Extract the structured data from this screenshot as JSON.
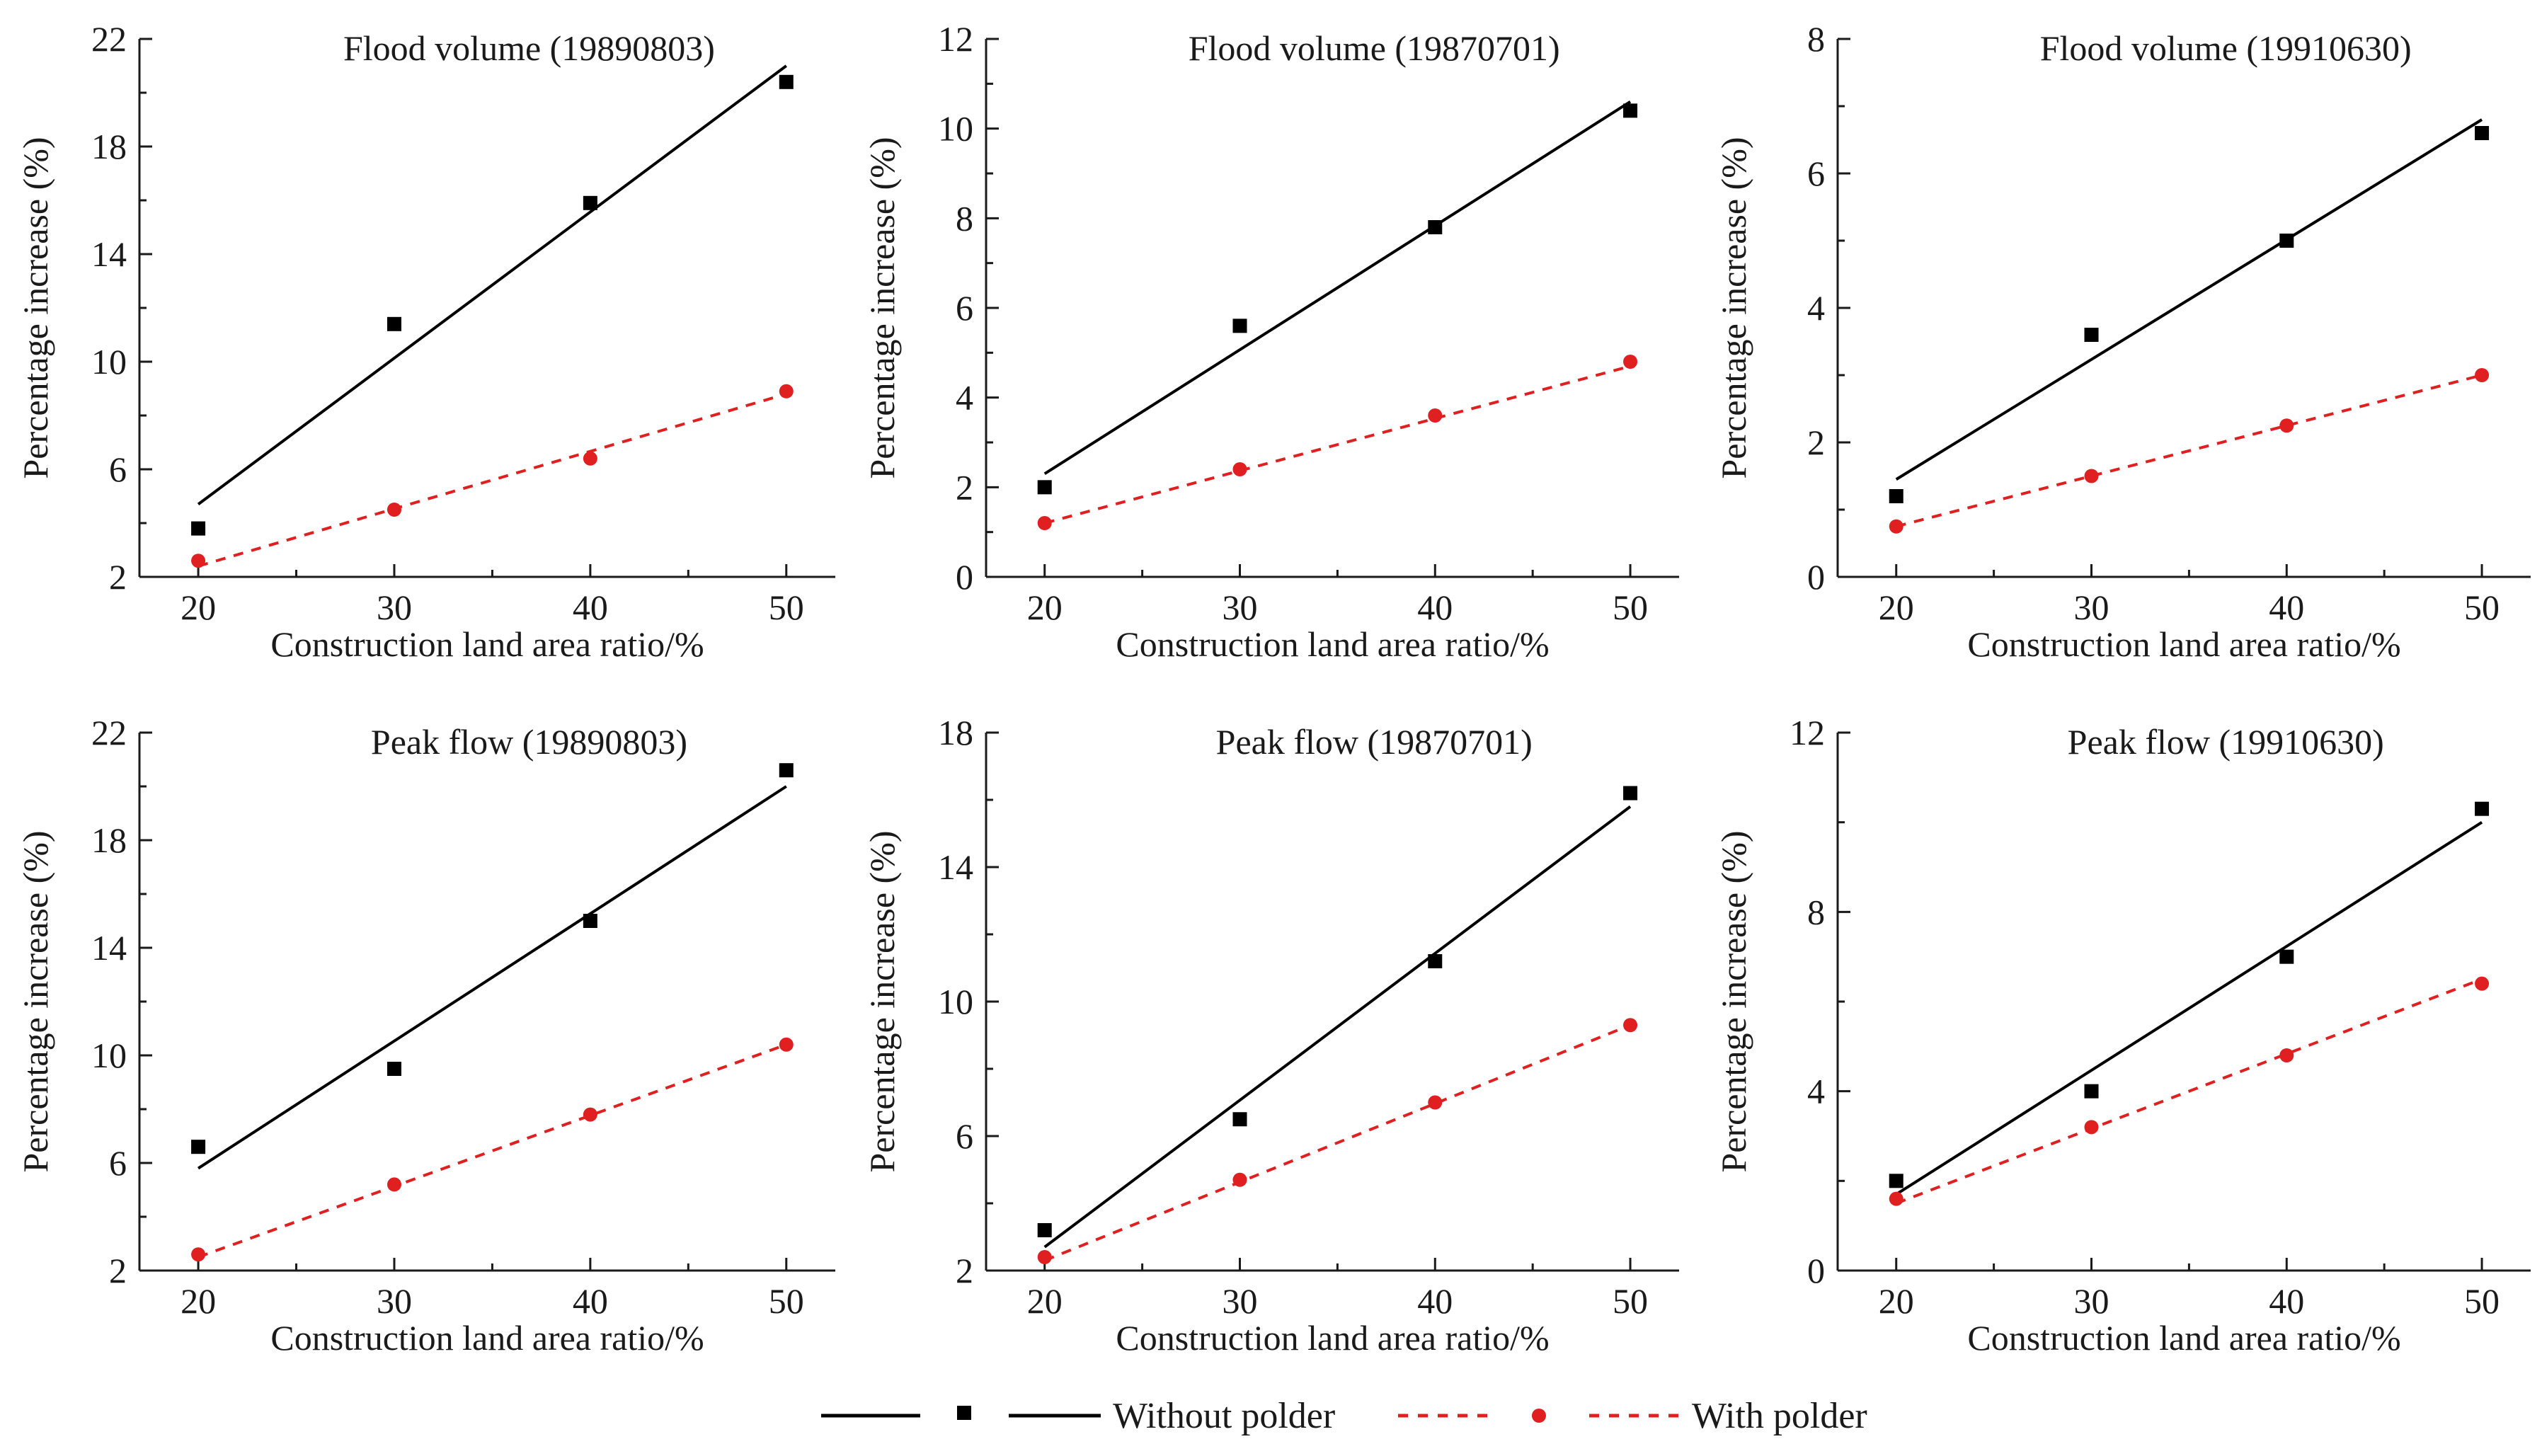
{
  "chart_data": [
    {
      "type": "scatter",
      "title": "Flood volume (19890803)",
      "xlabel": "Construction land area ratio/%",
      "ylabel": "Percentage increase (%)",
      "xticks": [
        20,
        30,
        40,
        50
      ],
      "yticks": [
        2,
        6,
        10,
        14,
        18,
        22
      ],
      "xlim": [
        17,
        52.5
      ],
      "ylim": [
        2,
        22
      ],
      "series": [
        {
          "name": "Without polder",
          "x": [
            20,
            30,
            40,
            50
          ],
          "y": [
            3.8,
            11.4,
            15.9,
            20.4
          ],
          "fit": [
            [
              20,
              4.7
            ],
            [
              50,
              21.0
            ]
          ]
        },
        {
          "name": "With polder",
          "x": [
            20,
            30,
            40,
            50
          ],
          "y": [
            2.6,
            4.5,
            6.4,
            8.9
          ],
          "fit": [
            [
              20,
              2.4
            ],
            [
              50,
              8.8
            ]
          ]
        }
      ]
    },
    {
      "type": "scatter",
      "title": "Flood volume (19870701)",
      "xlabel": "Construction land area ratio/%",
      "ylabel": "Percentage increase (%)",
      "xticks": [
        20,
        30,
        40,
        50
      ],
      "yticks": [
        0,
        2,
        4,
        6,
        8,
        10,
        12
      ],
      "xlim": [
        17,
        52.5
      ],
      "ylim": [
        0,
        12
      ],
      "series": [
        {
          "name": "Without polder",
          "x": [
            20,
            30,
            40,
            50
          ],
          "y": [
            2.0,
            5.6,
            7.8,
            10.4
          ],
          "fit": [
            [
              20,
              2.3
            ],
            [
              50,
              10.6
            ]
          ]
        },
        {
          "name": "With polder",
          "x": [
            20,
            30,
            40,
            50
          ],
          "y": [
            1.2,
            2.4,
            3.6,
            4.8
          ],
          "fit": [
            [
              20,
              1.2
            ],
            [
              50,
              4.7
            ]
          ]
        }
      ]
    },
    {
      "type": "scatter",
      "title": "Flood volume (19910630)",
      "xlabel": "Construction land area ratio/%",
      "ylabel": "Percentage increase (%)",
      "xticks": [
        20,
        30,
        40,
        50
      ],
      "yticks": [
        0,
        2,
        4,
        6,
        8
      ],
      "xlim": [
        17,
        52.5
      ],
      "ylim": [
        0,
        8
      ],
      "series": [
        {
          "name": "Without polder",
          "x": [
            20,
            30,
            40,
            50
          ],
          "y": [
            1.2,
            3.6,
            5.0,
            6.6
          ],
          "fit": [
            [
              20,
              1.45
            ],
            [
              50,
              6.8
            ]
          ]
        },
        {
          "name": "With polder",
          "x": [
            20,
            30,
            40,
            50
          ],
          "y": [
            0.75,
            1.5,
            2.25,
            3.0
          ],
          "fit": [
            [
              20,
              0.75
            ],
            [
              50,
              3.0
            ]
          ]
        }
      ]
    },
    {
      "type": "scatter",
      "title": "Peak flow (19890803)",
      "xlabel": "Construction land area ratio/%",
      "ylabel": "Percentage increase (%)",
      "xticks": [
        20,
        30,
        40,
        50
      ],
      "yticks": [
        2,
        6,
        10,
        14,
        18,
        22
      ],
      "xlim": [
        17,
        52.5
      ],
      "ylim": [
        2,
        22
      ],
      "series": [
        {
          "name": "Without polder",
          "x": [
            20,
            30,
            40,
            50
          ],
          "y": [
            6.6,
            9.5,
            15.0,
            20.6
          ],
          "fit": [
            [
              20,
              5.8
            ],
            [
              50,
              20.0
            ]
          ]
        },
        {
          "name": "With polder",
          "x": [
            20,
            30,
            40,
            50
          ],
          "y": [
            2.6,
            5.2,
            7.8,
            10.4
          ],
          "fit": [
            [
              20,
              2.5
            ],
            [
              50,
              10.4
            ]
          ]
        }
      ]
    },
    {
      "type": "scatter",
      "title": "Peak flow (19870701)",
      "xlabel": "Construction land area ratio/%",
      "ylabel": "Percentage increase (%)",
      "xticks": [
        20,
        30,
        40,
        50
      ],
      "yticks": [
        2,
        6,
        10,
        14,
        18
      ],
      "xlim": [
        17,
        52.5
      ],
      "ylim": [
        2,
        18
      ],
      "series": [
        {
          "name": "Without polder",
          "x": [
            20,
            30,
            40,
            50
          ],
          "y": [
            3.2,
            6.5,
            11.2,
            16.2
          ],
          "fit": [
            [
              20,
              2.7
            ],
            [
              50,
              15.8
            ]
          ]
        },
        {
          "name": "With polder",
          "x": [
            20,
            30,
            40,
            50
          ],
          "y": [
            2.4,
            4.7,
            7.0,
            9.3
          ],
          "fit": [
            [
              20,
              2.3
            ],
            [
              50,
              9.3
            ]
          ]
        }
      ]
    },
    {
      "type": "scatter",
      "title": "Peak flow (19910630)",
      "xlabel": "Construction land area ratio/%",
      "ylabel": "Percentage increase (%)",
      "xticks": [
        20,
        30,
        40,
        50
      ],
      "yticks": [
        0,
        4,
        8,
        12
      ],
      "xlim": [
        17,
        52.5
      ],
      "ylim": [
        0,
        12
      ],
      "series": [
        {
          "name": "Without polder",
          "x": [
            20,
            30,
            40,
            50
          ],
          "y": [
            2.0,
            4.0,
            7.0,
            10.3
          ],
          "fit": [
            [
              20,
              1.7
            ],
            [
              50,
              10.0
            ]
          ]
        },
        {
          "name": "With polder",
          "x": [
            20,
            30,
            40,
            50
          ],
          "y": [
            1.6,
            3.2,
            4.8,
            6.4
          ],
          "fit": [
            [
              20,
              1.5
            ],
            [
              50,
              6.5
            ]
          ]
        }
      ]
    }
  ],
  "legend": {
    "items": [
      {
        "label": "Without polder",
        "color": "#000000",
        "marker": "square",
        "line": "solid"
      },
      {
        "label": "With polder",
        "color": "#e02020",
        "marker": "circle",
        "line": "dashed"
      }
    ]
  },
  "colors": {
    "without": "#000000",
    "with": "#e02020",
    "axis": "#1a1a1a"
  }
}
